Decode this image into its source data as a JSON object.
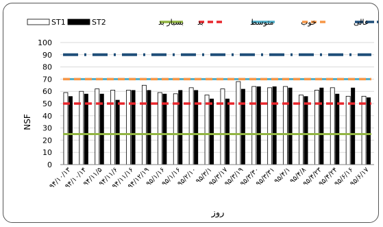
{
  "chart_data": {
    "type": "bar",
    "xlabel": "روز",
    "ylabel": "NSF",
    "ylim": [
      0,
      100
    ],
    "ytick_step": 10,
    "grid": true,
    "legend_position": "top",
    "categories": [
      "۹۴/۱۰/۱۳",
      "۹۴/۱۰/۱۴",
      "۹۴/۱۱/۵",
      "۹۴/۱۱/۶",
      "۹۴/۱۱/۱۶",
      "۹۴/۱۲/۱۹",
      "۹۵/۱/۱۶",
      "۹۵/۱/۱۶",
      "۹۵/۲/۱۰",
      "۹۵/۳/۱",
      "۹۵/۳/۱۷",
      "۹۵/۳/۱۹",
      "۹۵/۳/۳۰",
      "۹۵/۳/۳۱",
      "۹۵/۴/۱",
      "۹۵/۴/۸",
      "۹۵/۴/۲۳",
      "۹۵/۴/۲۴",
      "۹۵/۶/۱۶",
      "۹۵/۶/۱۷"
    ],
    "series": [
      {
        "name": "ST1",
        "kind": "bar",
        "color": "#ffffff",
        "stroke": "#000000",
        "values": [
          59,
          60,
          62,
          61,
          61,
          65,
          59,
          58,
          63,
          57,
          62,
          68,
          64,
          63,
          64,
          57,
          61,
          63,
          56,
          56
        ]
      },
      {
        "name": "ST2",
        "kind": "bar",
        "color": "#000000",
        "values": [
          56,
          58,
          58,
          53,
          61,
          61,
          58,
          61,
          61,
          54,
          54,
          62,
          64,
          64,
          63,
          56,
          63,
          58,
          63,
          55
        ]
      },
      {
        "name": "بسیار بد",
        "kind": "threshold",
        "value": 25,
        "color": "#92b542",
        "dash": "solid"
      },
      {
        "name": "بد",
        "kind": "threshold",
        "value": 50,
        "color": "#e8262c",
        "dash": "dash"
      },
      {
        "name": "متوسط",
        "kind": "threshold",
        "value": 70,
        "color": "#4bacc6",
        "dash": "solid"
      },
      {
        "name": "خوب",
        "kind": "threshold",
        "value": 70,
        "color": "#f79646",
        "dash": "dash"
      },
      {
        "name": "عالی",
        "kind": "threshold",
        "value": 90,
        "color": "#1f4e79",
        "dash": "dashdot"
      }
    ]
  },
  "colors": {
    "grid": "#d9d9d9",
    "axis": "#808080",
    "text": "#000000"
  }
}
